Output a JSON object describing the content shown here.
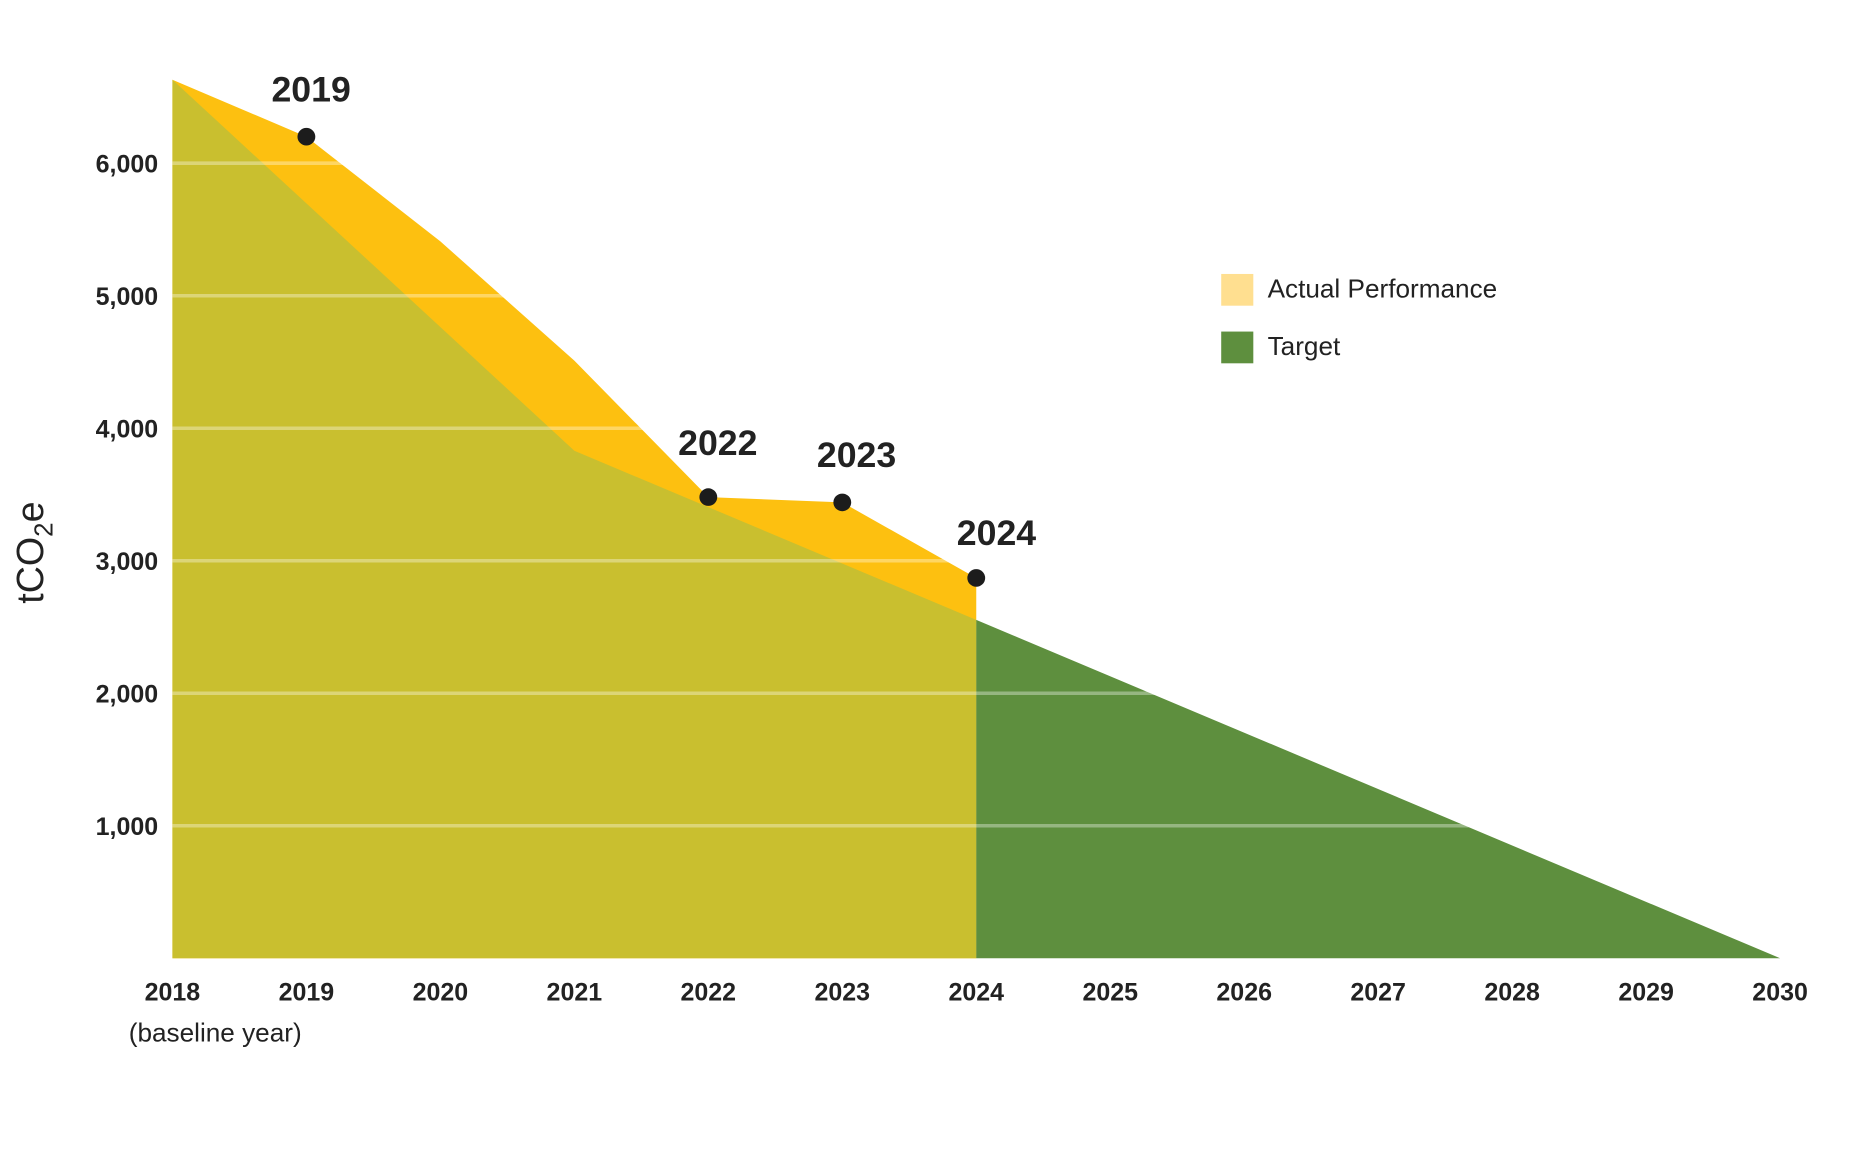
{
  "chart_data": {
    "type": "area",
    "title": "",
    "xlabel": "",
    "ylabel_parts": [
      "tCO",
      "2",
      "e"
    ],
    "xlim": [
      2018,
      2030
    ],
    "ylim": [
      0,
      6630
    ],
    "grid": true,
    "x_ticks": [
      "2018",
      "2019",
      "2020",
      "2021",
      "2022",
      "2023",
      "2024",
      "2025",
      "2026",
      "2027",
      "2028",
      "2029",
      "2030"
    ],
    "x_tick_sublabel": "(baseline year)",
    "y_ticks": [
      {
        "value": 1000,
        "label": "1,000"
      },
      {
        "value": 2000,
        "label": "2,000"
      },
      {
        "value": 3000,
        "label": "3,000"
      },
      {
        "value": 4000,
        "label": "4,000"
      },
      {
        "value": 5000,
        "label": "5,000"
      },
      {
        "value": 6000,
        "label": "6,000"
      }
    ],
    "series": [
      {
        "name": "Actual Performance",
        "color": "#FDC010",
        "legend_color": "#FFDF90",
        "x": [
          2018,
          2019,
          2020,
          2021,
          2022,
          2023,
          2024
        ],
        "values": [
          6630,
          6200,
          5410,
          4510,
          3480,
          3440,
          2870
        ]
      },
      {
        "name": "Target",
        "color": "#5E8F3E",
        "overlap_color": "#C9BF2F",
        "x": [
          2018,
          2021,
          2030
        ],
        "values": [
          6630,
          3830,
          0
        ]
      }
    ],
    "annotations": [
      {
        "x": 2019,
        "value": 6200,
        "label": "2019"
      },
      {
        "x": 2022,
        "value": 3480,
        "label": "2022"
      },
      {
        "x": 2023,
        "value": 3440,
        "label": "2023"
      },
      {
        "x": 2024,
        "value": 2870,
        "label": "2024"
      }
    ],
    "legend_position": "top-right"
  }
}
